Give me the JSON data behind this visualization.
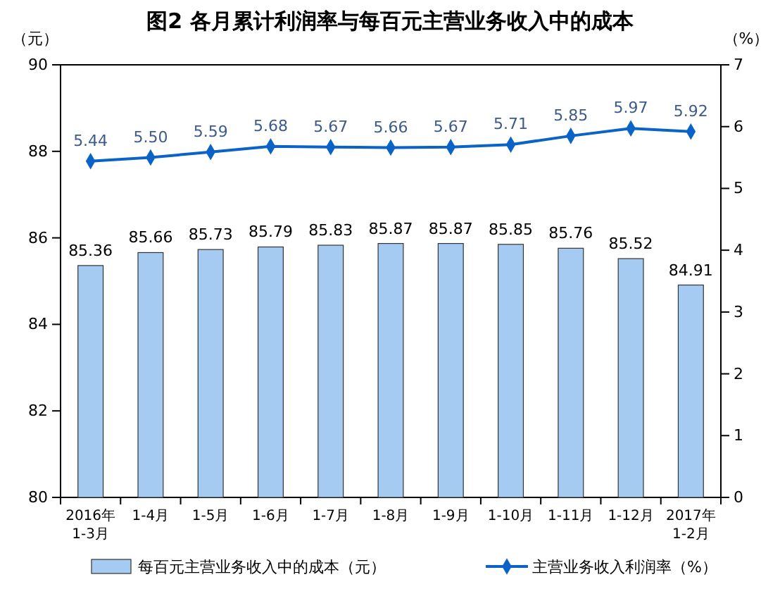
{
  "chart_data": {
    "type": "bar",
    "title": "图2  各月累计利润率与每百元主营业务收入中的成本",
    "ylabel": "（元）",
    "y2label": "（%）",
    "categories": [
      "2016年\n1-3月",
      "1-4月",
      "1-5月",
      "1-6月",
      "1-7月",
      "1-8月",
      "1-9月",
      "1-10月",
      "1-11月",
      "1-12月",
      "2017年\n1-2月"
    ],
    "series": [
      {
        "name": "每百元主营业务收入中的成本（元）",
        "color": "#a6cbf2",
        "values": [
          85.36,
          85.66,
          85.73,
          85.79,
          85.83,
          85.87,
          85.87,
          85.85,
          85.76,
          85.52,
          84.91
        ]
      },
      {
        "name": "主营业务收入利润率（%）",
        "type": "line",
        "axis": "y2",
        "color": "#0a64c8",
        "marker": "diamond",
        "values": [
          5.44,
          5.5,
          5.59,
          5.68,
          5.67,
          5.66,
          5.67,
          5.71,
          5.85,
          5.97,
          5.92
        ],
        "value_labels": [
          "5.44",
          "5.50",
          "5.59",
          "5.68",
          "5.67",
          "5.66",
          "5.67",
          "5.71",
          "5.85",
          "5.97",
          "5.92"
        ]
      }
    ],
    "ylim": [
      80,
      90
    ],
    "yticks": [
      80,
      82,
      84,
      86,
      88,
      90
    ],
    "y2lim": [
      0,
      7
    ],
    "y2ticks": [
      0,
      1,
      2,
      3,
      4,
      5,
      6,
      7
    ],
    "data_labels": true,
    "legend": "bottom",
    "grid": false
  }
}
